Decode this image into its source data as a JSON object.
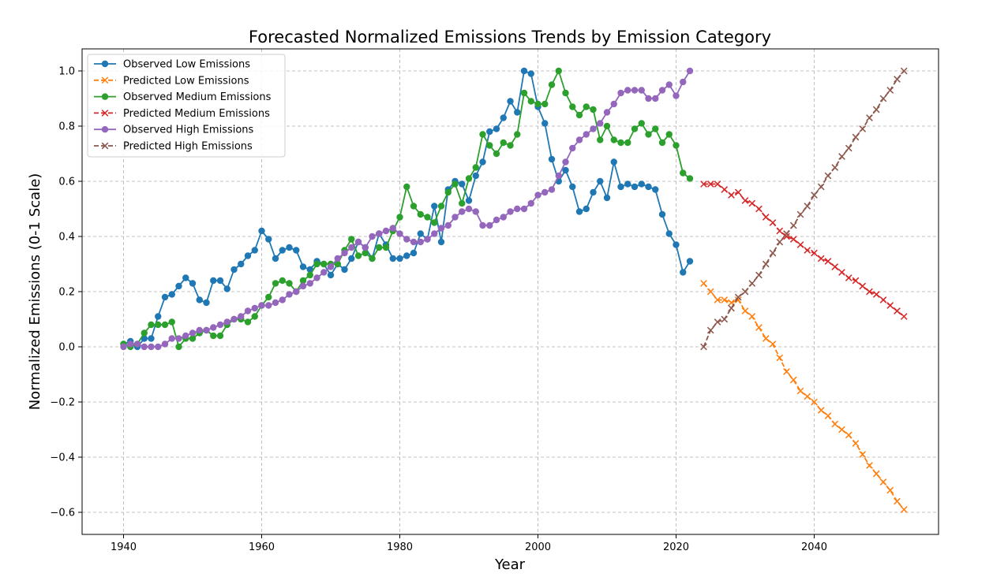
{
  "chart_data": {
    "type": "line",
    "title": "Forecasted Normalized Emissions Trends by Emission Category",
    "xlabel": "Year",
    "ylabel": "Normalized Emissions (0-1 Scale)",
    "xlim": [
      1934,
      2058
    ],
    "ylim": [
      -0.68,
      1.08
    ],
    "xticks": [
      1940,
      1960,
      1980,
      2000,
      2020,
      2040
    ],
    "yticks": [
      -0.6,
      -0.4,
      -0.2,
      0.0,
      0.2,
      0.4,
      0.6,
      0.8,
      1.0
    ],
    "xtick_labels": [
      "1940",
      "1960",
      "1980",
      "2000",
      "2020",
      "2040"
    ],
    "ytick_labels": [
      "−0.6",
      "−0.4",
      "−0.2",
      "0.0",
      "0.2",
      "0.4",
      "0.6",
      "0.8",
      "1.0"
    ],
    "grid": true,
    "legend_position": "top-left",
    "series": [
      {
        "name": "Observed Low Emissions",
        "color": "#1f77b4",
        "marker": "circle",
        "dashed": false,
        "x_start": 1940,
        "values": [
          0.01,
          0.02,
          0.0,
          0.03,
          0.03,
          0.11,
          0.18,
          0.19,
          0.22,
          0.25,
          0.23,
          0.17,
          0.16,
          0.24,
          0.24,
          0.21,
          0.28,
          0.3,
          0.33,
          0.35,
          0.42,
          0.39,
          0.32,
          0.35,
          0.36,
          0.35,
          0.29,
          0.28,
          0.31,
          0.3,
          0.26,
          0.3,
          0.28,
          0.32,
          0.38,
          0.36,
          0.32,
          0.41,
          0.37,
          0.32,
          0.32,
          0.33,
          0.34,
          0.41,
          0.39,
          0.51,
          0.38,
          0.57,
          0.6,
          0.59,
          0.53,
          0.62,
          0.67,
          0.78,
          0.79,
          0.83,
          0.89,
          0.85,
          1.0,
          0.99,
          0.87,
          0.81,
          0.68,
          0.6,
          0.64,
          0.58,
          0.49,
          0.5,
          0.56,
          0.6,
          0.54,
          0.67,
          0.58,
          0.59,
          0.58,
          0.59,
          0.58,
          0.57,
          0.48,
          0.41,
          0.37,
          0.27,
          0.31
        ]
      },
      {
        "name": "Predicted Low Emissions",
        "color": "#ff7f0e",
        "marker": "x",
        "dashed": true,
        "x_start": 2024,
        "values": [
          0.23,
          0.2,
          0.17,
          0.17,
          0.16,
          0.17,
          0.13,
          0.11,
          0.07,
          0.03,
          0.01,
          -0.04,
          -0.09,
          -0.12,
          -0.16,
          -0.18,
          -0.2,
          -0.23,
          -0.25,
          -0.28,
          -0.3,
          -0.32,
          -0.35,
          -0.39,
          -0.43,
          -0.46,
          -0.49,
          -0.52,
          -0.56,
          -0.59
        ]
      },
      {
        "name": "Observed Medium Emissions",
        "color": "#2ca02c",
        "marker": "circle",
        "dashed": false,
        "x_start": 1940,
        "values": [
          0.01,
          0.0,
          0.01,
          0.05,
          0.08,
          0.08,
          0.08,
          0.09,
          0.0,
          0.03,
          0.03,
          0.05,
          0.06,
          0.04,
          0.04,
          0.08,
          0.1,
          0.1,
          0.09,
          0.11,
          0.15,
          0.18,
          0.23,
          0.24,
          0.23,
          0.2,
          0.24,
          0.26,
          0.3,
          0.3,
          0.3,
          0.3,
          0.35,
          0.39,
          0.33,
          0.34,
          0.32,
          0.36,
          0.36,
          0.42,
          0.47,
          0.58,
          0.51,
          0.48,
          0.47,
          0.45,
          0.51,
          0.56,
          0.59,
          0.52,
          0.61,
          0.65,
          0.77,
          0.73,
          0.7,
          0.74,
          0.73,
          0.77,
          0.92,
          0.89,
          0.88,
          0.88,
          0.95,
          1.0,
          0.92,
          0.87,
          0.84,
          0.87,
          0.86,
          0.75,
          0.8,
          0.75,
          0.74,
          0.74,
          0.79,
          0.81,
          0.77,
          0.79,
          0.74,
          0.77,
          0.73,
          0.63,
          0.61
        ]
      },
      {
        "name": "Predicted Medium Emissions",
        "color": "#d62728",
        "marker": "x",
        "dashed": true,
        "x_start": 2024,
        "values": [
          0.59,
          0.59,
          0.59,
          0.57,
          0.55,
          0.56,
          0.53,
          0.52,
          0.5,
          0.47,
          0.45,
          0.42,
          0.4,
          0.39,
          0.37,
          0.35,
          0.34,
          0.32,
          0.31,
          0.29,
          0.27,
          0.25,
          0.24,
          0.22,
          0.2,
          0.19,
          0.17,
          0.15,
          0.13,
          0.11
        ]
      },
      {
        "name": "Observed High Emissions",
        "color": "#9467bd",
        "marker": "circle",
        "dashed": false,
        "x_start": 1940,
        "values": [
          0.0,
          0.01,
          0.01,
          0.0,
          0.0,
          0.0,
          0.01,
          0.03,
          0.03,
          0.04,
          0.05,
          0.06,
          0.06,
          0.07,
          0.08,
          0.09,
          0.1,
          0.11,
          0.13,
          0.14,
          0.15,
          0.15,
          0.16,
          0.17,
          0.19,
          0.2,
          0.22,
          0.23,
          0.25,
          0.27,
          0.29,
          0.32,
          0.34,
          0.36,
          0.38,
          0.36,
          0.4,
          0.41,
          0.42,
          0.43,
          0.41,
          0.39,
          0.38,
          0.38,
          0.39,
          0.41,
          0.43,
          0.44,
          0.47,
          0.49,
          0.5,
          0.49,
          0.44,
          0.44,
          0.46,
          0.47,
          0.49,
          0.5,
          0.5,
          0.52,
          0.55,
          0.56,
          0.57,
          0.62,
          0.67,
          0.72,
          0.75,
          0.77,
          0.79,
          0.81,
          0.85,
          0.88,
          0.92,
          0.93,
          0.93,
          0.93,
          0.9,
          0.9,
          0.93,
          0.95,
          0.91,
          0.96,
          1.0
        ]
      },
      {
        "name": "Predicted High Emissions",
        "color": "#8c564b",
        "marker": "x",
        "dashed": true,
        "x_start": 2024,
        "values": [
          0.0,
          0.06,
          0.09,
          0.1,
          0.14,
          0.18,
          0.2,
          0.23,
          0.26,
          0.3,
          0.34,
          0.38,
          0.41,
          0.44,
          0.48,
          0.51,
          0.55,
          0.58,
          0.62,
          0.65,
          0.69,
          0.72,
          0.76,
          0.79,
          0.83,
          0.86,
          0.9,
          0.93,
          0.97,
          1.0
        ]
      }
    ]
  }
}
